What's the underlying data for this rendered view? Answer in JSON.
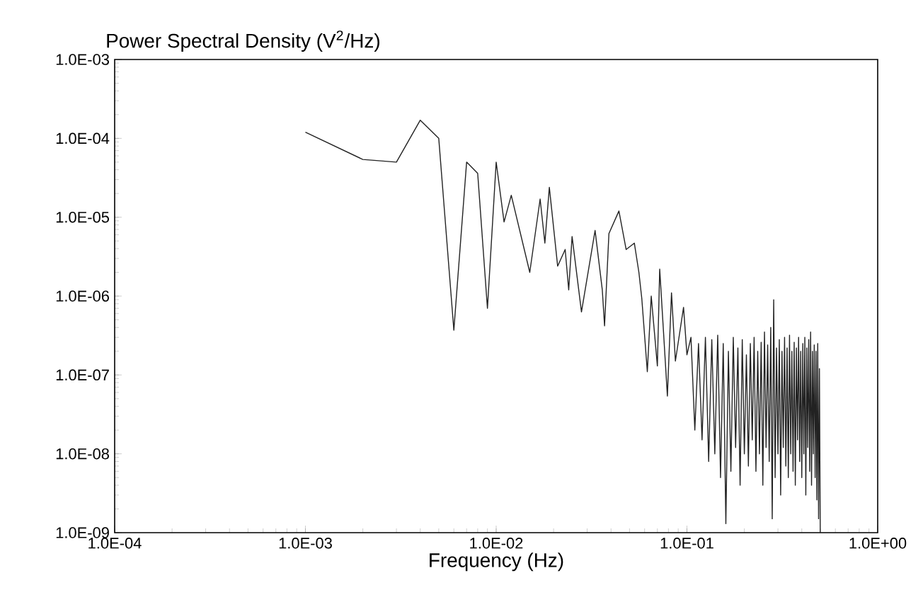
{
  "chart_data": {
    "type": "line",
    "ylabel": "Power Spectral Density (V$^{2}$/Hz)",
    "xlabel": "Frequency (Hz)",
    "log": "xy",
    "grid": false,
    "color": "#222222",
    "xlim": [
      0.0001,
      1
    ],
    "ylim": [
      1e-09,
      0.001
    ],
    "xticks": [
      {
        "value": 0.0001,
        "label": "1.0E-04"
      },
      {
        "value": 0.001,
        "label": "1.0E-03"
      },
      {
        "value": 0.01,
        "label": "1.0E-02"
      },
      {
        "value": 0.1,
        "label": "1.0E-01"
      },
      {
        "value": 1,
        "label": "1.0E+00"
      }
    ],
    "yticks": [
      {
        "value": 1e-09,
        "label": "1.0E-09"
      },
      {
        "value": 1e-08,
        "label": "1.0E-08"
      },
      {
        "value": 1e-07,
        "label": "1.0E-07"
      },
      {
        "value": 1e-06,
        "label": "1.0E-06"
      },
      {
        "value": 1e-05,
        "label": "1.0E-05"
      },
      {
        "value": 0.0001,
        "label": "1.0E-04"
      },
      {
        "value": 0.001,
        "label": "1.0E-03"
      }
    ],
    "x": [
      0.001,
      0.002,
      0.003,
      0.004,
      0.005,
      0.006,
      0.007,
      0.008,
      0.009,
      0.01,
      0.011,
      0.012,
      0.015,
      0.017,
      0.018,
      0.019,
      0.021,
      0.023,
      0.024,
      0.025,
      0.028,
      0.033,
      0.036,
      0.037,
      0.039,
      0.044,
      0.048,
      0.053,
      0.056,
      0.058,
      0.062,
      0.065,
      0.07,
      0.072,
      0.079,
      0.083,
      0.087,
      0.096,
      0.1,
      0.105,
      0.11,
      0.115,
      0.12,
      0.125,
      0.13,
      0.135,
      0.14,
      0.145,
      0.15,
      0.155,
      0.16,
      0.165,
      0.17,
      0.175,
      0.18,
      0.185,
      0.19,
      0.195,
      0.2,
      0.205,
      0.21,
      0.215,
      0.22,
      0.225,
      0.23,
      0.235,
      0.24,
      0.245,
      0.25,
      0.255,
      0.26,
      0.265,
      0.27,
      0.275,
      0.28,
      0.285,
      0.29,
      0.295,
      0.3,
      0.305,
      0.31,
      0.315,
      0.32,
      0.325,
      0.33,
      0.335,
      0.34,
      0.345,
      0.35,
      0.355,
      0.36,
      0.365,
      0.37,
      0.375,
      0.38,
      0.385,
      0.39,
      0.395,
      0.4,
      0.405,
      0.41,
      0.415,
      0.42,
      0.425,
      0.43,
      0.435,
      0.44,
      0.445,
      0.45,
      0.455,
      0.46,
      0.465,
      0.47,
      0.475,
      0.48,
      0.485,
      0.49,
      0.495,
      0.5
    ],
    "values": [
      0.00012,
      5.4e-05,
      5e-05,
      0.00017,
      0.0001,
      3.7e-07,
      5e-05,
      3.6e-05,
      7e-07,
      5e-05,
      8.7e-06,
      1.9e-05,
      2e-06,
      1.7e-05,
      4.7e-06,
      2.4e-05,
      2.4e-06,
      3.9e-06,
      1.2e-06,
      5.7e-06,
      6.3e-07,
      6.8e-06,
      1.2e-06,
      4.2e-07,
      6.2e-06,
      1.2e-05,
      3.9e-06,
      4.7e-06,
      2e-06,
      9.3e-07,
      1.1e-07,
      1e-06,
      1.3e-07,
      2.2e-06,
      5.4e-08,
      1.1e-06,
      1.5e-07,
      7.2e-07,
      1.8e-07,
      3e-07,
      2e-08,
      2.5e-07,
      1.5e-08,
      3e-07,
      8e-09,
      2.8e-07,
      1e-08,
      3.2e-07,
      5e-09,
      2.5e-07,
      1.3e-09,
      2e-07,
      6e-09,
      3e-07,
      1.2e-08,
      2.2e-07,
      4e-09,
      2.8e-07,
      1e-08,
      1.8e-07,
      7e-09,
      2.5e-07,
      1.5e-08,
      3e-07,
      6e-09,
      2e-07,
      1e-08,
      2.6e-07,
      4e-09,
      3.5e-07,
      1.2e-08,
      2.4e-07,
      8e-09,
      4e-07,
      1.5e-09,
      9e-07,
      5e-09,
      2.2e-07,
      1e-08,
      2.8e-07,
      3e-09,
      2e-07,
      1.2e-08,
      3e-07,
      7e-09,
      2.2e-07,
      5e-09,
      3.2e-07,
      1e-08,
      2e-07,
      6e-09,
      2.6e-07,
      4e-09,
      2.2e-07,
      1.5e-08,
      3e-07,
      8e-09,
      2e-07,
      5e-09,
      2.5e-07,
      1e-08,
      3e-07,
      3e-09,
      2.2e-07,
      1.2e-08,
      2.8e-07,
      6e-09,
      3.5e-07,
      4e-09,
      2e-07,
      1e-08,
      2.4e-07,
      5e-09,
      2e-07,
      2.6e-09,
      2.5e-07,
      1.5e-09,
      1.2e-07,
      1e-09
    ]
  }
}
